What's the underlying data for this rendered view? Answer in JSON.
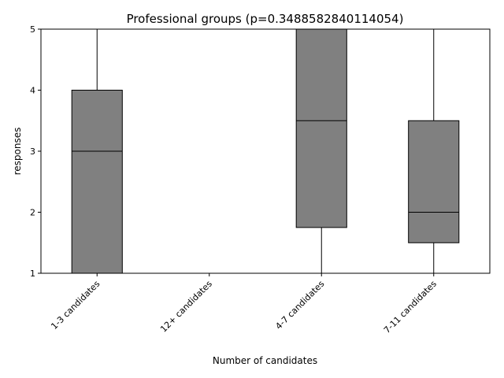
{
  "chart_data": {
    "type": "box",
    "title": "Professional groups (p=0.3488582840114054)",
    "xlabel": "Number of candidates",
    "ylabel": "responses",
    "ylim": [
      1,
      5
    ],
    "yticks": [
      "1",
      "2",
      "3",
      "4",
      "5"
    ],
    "grid": false,
    "categories": [
      "1-3 candidates",
      "12+ candidates",
      "4-7 candidates",
      "7-11 candidates"
    ],
    "boxes": [
      {
        "category": "1-3 candidates",
        "whisker_low": 1,
        "q1": 1,
        "median": 3,
        "q3": 4,
        "whisker_high": 5
      },
      {
        "category": "12+ candidates",
        "whisker_low": 5,
        "q1": 5,
        "median": 5,
        "q3": 5,
        "whisker_high": 5
      },
      {
        "category": "4-7 candidates",
        "whisker_low": 1,
        "q1": 1.75,
        "median": 3.5,
        "q3": 5,
        "whisker_high": 5
      },
      {
        "category": "7-11 candidates",
        "whisker_low": 1,
        "q1": 1.5,
        "median": 2,
        "q3": 3.5,
        "whisker_high": 5
      }
    ],
    "colors": {
      "box_fill": "#808080",
      "box_edge": "#000000",
      "median": "#000000",
      "whisker": "#000000"
    }
  }
}
